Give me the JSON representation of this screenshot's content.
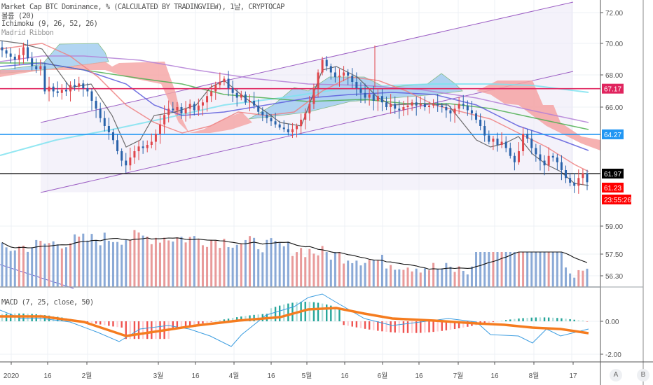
{
  "window": {
    "title": "Market Cap BTC Dominance, % (CALCULATED BY TRADINGVIEW), 1날, CRYPTOCAP"
  },
  "legends": {
    "main": "Market Cap BTC Dominance, % (CALCULATED BY TRADINGVIEW), 1날, CRYPTOCAP",
    "volume": "볼륨 (20)",
    "ichimoku": "Ichimoku (9, 26, 52, 26)",
    "madrid": "Madrid Ribbon",
    "macd": "MACD (7, 25, close, 50)"
  },
  "colors": {
    "up": "#e0474c",
    "down": "#2962aa",
    "volume_up": "#e89a9a",
    "volume_down": "#8aa9d6",
    "hline_red": "#e0245e",
    "hline_blue": "#2196f3",
    "hline_black": "#000000",
    "channel": "#9c5fc4",
    "macd_line": "#3c9de0",
    "signal_line": "#f57c1f",
    "hist_pos_strong": "#26a69a",
    "hist_pos_weak": "#b2dfdb",
    "hist_neg_strong": "#ef5350",
    "hist_neg_weak": "#ffcdd2"
  },
  "price_axis": {
    "ticks": [
      "72.00",
      "70.00",
      "68.00",
      "66.00",
      "59.00",
      "57.50",
      "56.30"
    ],
    "tags": [
      {
        "label": "67.17",
        "value": 67.17,
        "color": "#e0245e"
      },
      {
        "label": "64.27",
        "value": 64.27,
        "color": "#2196f3"
      },
      {
        "label": "61.97",
        "value": 61.97,
        "color": "#000000"
      },
      {
        "label": "61.23",
        "value": 61.23,
        "color": "#ff0000"
      },
      {
        "label": "23:55:26",
        "color": "#ff0000"
      }
    ]
  },
  "macd_axis": {
    "ticks": [
      "0.00",
      "-2.00"
    ]
  },
  "time_axis": {
    "labels": [
      "2020",
      "16",
      "2월",
      "3월",
      "16",
      "4월",
      "16",
      "5월",
      "16",
      "6월",
      "16",
      "7월",
      "16",
      "8월",
      "17"
    ]
  },
  "buttons": {
    "a": "A",
    "b": "B"
  },
  "chart_data": {
    "type": "candlestick",
    "title": "Market Cap BTC Dominance, % (CALCULATED BY TRADINGVIEW), 1날, CRYPTOCAP",
    "xlabel": "",
    "ylabel": "%",
    "ylim": [
      56.0,
      72.8
    ],
    "x_ticks": [
      "2020",
      "16",
      "2월",
      "3월",
      "16",
      "4월",
      "16",
      "5월",
      "16",
      "6월",
      "16",
      "7월",
      "16",
      "8월",
      "17"
    ],
    "horizontal_lines": [
      67.17,
      64.27,
      61.97
    ],
    "last_price": 61.23,
    "countdown": "23:55:26",
    "close_series_approx": [
      69.6,
      69.4,
      69.2,
      69.0,
      69.3,
      69.8,
      69.1,
      68.6,
      68.4,
      68.6,
      67.0,
      67.3,
      67.0,
      66.9,
      67.1,
      67.0,
      67.4,
      67.3,
      67.5,
      67.2,
      67.0,
      66.4,
      65.9,
      65.3,
      64.8,
      64.4,
      63.9,
      63.2,
      62.6,
      62.3,
      62.8,
      63.2,
      63.5,
      63.4,
      63.6,
      63.8,
      64.3,
      64.9,
      65.5,
      65.9,
      65.8,
      66.0,
      65.6,
      65.9,
      66.2,
      65.8,
      66.1,
      66.3,
      66.7,
      67.0,
      67.4,
      67.6,
      67.8,
      67.2,
      66.9,
      66.6,
      66.8,
      66.3,
      66.4,
      66.1,
      65.7,
      65.5,
      65.3,
      65.1,
      64.9,
      64.7,
      64.6,
      64.4,
      64.6,
      64.8,
      65.2,
      65.6,
      66.2,
      67.2,
      68.2,
      69.0,
      68.6,
      68.2,
      67.9,
      68.0,
      68.2,
      68.0,
      67.6,
      67.2,
      66.9,
      66.6,
      66.8,
      66.4,
      66.7,
      66.3,
      66.0,
      66.2,
      65.9,
      65.8,
      66.0,
      66.1,
      66.3,
      66.1,
      66.2,
      66.0,
      66.1,
      66.2,
      66.1,
      66.0,
      65.8,
      65.6,
      65.9,
      66.2,
      66.1,
      65.8,
      65.6,
      65.2,
      64.8,
      64.2,
      63.8,
      64.0,
      63.6,
      63.8,
      63.4,
      62.9,
      62.5,
      63.2,
      64.3,
      64.0,
      63.4,
      63.0,
      62.6,
      62.3,
      62.9,
      62.8,
      62.5,
      62.0,
      61.5,
      61.2,
      61.0,
      61.5,
      61.8,
      61.23
    ],
    "indicators": [
      "Volume (20)",
      "Ichimoku (9, 26, 52, 26)",
      "Madrid Ribbon",
      "MACD (7, 25, close, 50)"
    ],
    "volume_axis_ticks": [
      59.0,
      57.5,
      56.3
    ],
    "macd_ylim": [
      -2.0,
      0.0
    ]
  }
}
